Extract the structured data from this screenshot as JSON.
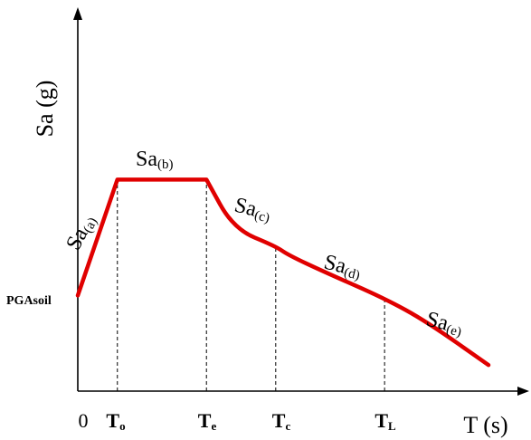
{
  "chart_data": {
    "type": "line",
    "title": "",
    "xlabel": "T (s)",
    "ylabel": "Sa (g)",
    "x_ticks": [
      {
        "main": "0",
        "sub": ""
      },
      {
        "main": "T",
        "sub": "o"
      },
      {
        "main": "T",
        "sub": "e"
      },
      {
        "main": "T",
        "sub": "c"
      },
      {
        "main": "T",
        "sub": "L"
      }
    ],
    "y_label_left": "PGAsoil",
    "series": [
      {
        "color": "#e00000",
        "points": [
          {
            "t": 0.0,
            "sa": 0.33
          },
          {
            "t": 0.16,
            "sa": 0.73
          },
          {
            "t": 0.52,
            "sa": 0.73
          },
          {
            "t": 0.63,
            "sa": 0.56
          },
          {
            "t": 0.8,
            "sa": 0.5
          },
          {
            "t": 0.85,
            "sa": 0.47
          },
          {
            "t": 1.0,
            "sa": 0.41
          },
          {
            "t": 1.24,
            "sa": 0.32
          },
          {
            "t": 1.41,
            "sa": 0.24
          },
          {
            "t": 1.66,
            "sa": 0.09
          }
        ]
      }
    ],
    "segment_labels": [
      {
        "main": "Sa",
        "sub": "(a)"
      },
      {
        "main": "Sa",
        "sub": "(b)"
      },
      {
        "main": "Sa",
        "sub": "(c)"
      },
      {
        "main": "Sa",
        "sub": "(d)"
      },
      {
        "main": "Sa",
        "sub": "(e)"
      }
    ],
    "guides_at_ticks": [
      1,
      2,
      3,
      4
    ],
    "grid": false,
    "legend": "none"
  }
}
